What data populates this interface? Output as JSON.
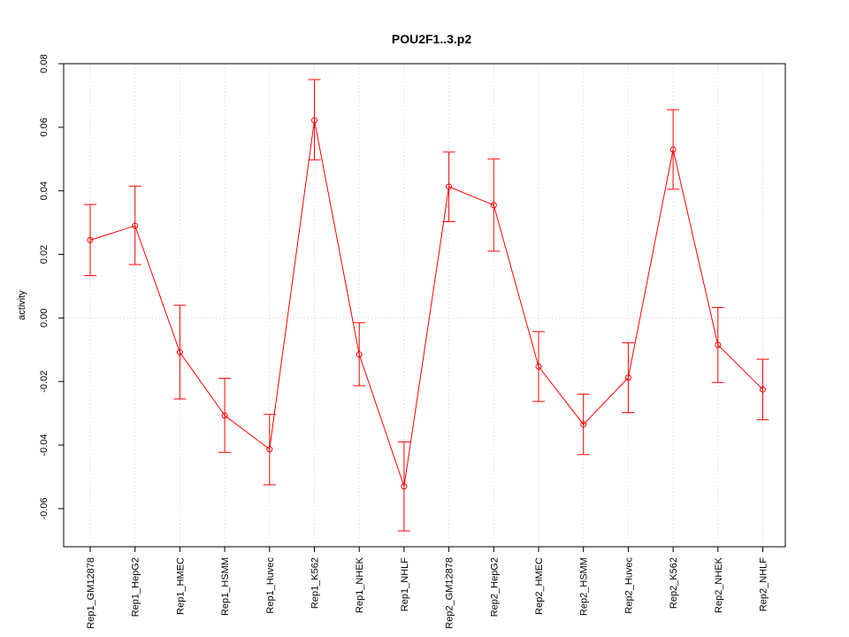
{
  "chart_data": {
    "type": "line",
    "title": "POU2F1..3.p2",
    "xlabel": "",
    "ylabel": "activity",
    "ylim": [
      -0.072,
      0.08
    ],
    "yticks": [
      -0.06,
      -0.04,
      -0.02,
      0.0,
      0.02,
      0.04,
      0.06,
      0.08
    ],
    "ytick_labels": [
      "-0.06",
      "-0.04",
      "-0.02",
      "0.00",
      "0.02",
      "0.04",
      "0.06",
      "0.08"
    ],
    "grid": true,
    "color": "#ff0000",
    "grid_color": "#d3d3d3",
    "categories": [
      "Rep1_GM12878",
      "Rep1_HepG2",
      "Rep1_HMEC",
      "Rep1_HSMM",
      "Rep1_Huvec",
      "Rep1_K562",
      "Rep1_NHEK",
      "Rep1_NHLF",
      "Rep2_GM12878",
      "Rep2_HepG2",
      "Rep2_HMEC",
      "Rep2_HSMM",
      "Rep2_Huvec",
      "Rep2_K562",
      "Rep2_NHEK",
      "Rep2_NHLF"
    ],
    "values": [
      0.0245,
      0.029,
      -0.0108,
      -0.0307,
      -0.0413,
      0.0622,
      -0.0115,
      -0.053,
      0.0413,
      0.0355,
      -0.0153,
      -0.0335,
      -0.0188,
      0.053,
      -0.0085,
      -0.0225
    ],
    "upper": [
      0.0357,
      0.0415,
      0.004,
      -0.019,
      -0.0303,
      0.075,
      -0.0015,
      -0.039,
      0.0522,
      0.05,
      -0.0043,
      -0.024,
      -0.0078,
      0.0655,
      0.0033,
      -0.013
    ],
    "lower": [
      0.0133,
      0.0168,
      -0.0255,
      -0.0423,
      -0.0525,
      0.0497,
      -0.0213,
      -0.067,
      0.0303,
      0.021,
      -0.0263,
      -0.043,
      -0.0298,
      0.0405,
      -0.0203,
      -0.032
    ]
  }
}
